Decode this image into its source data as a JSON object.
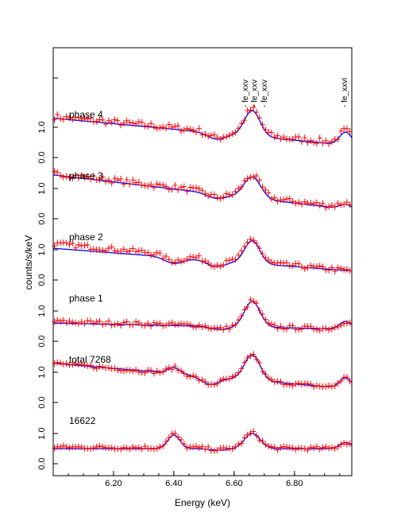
{
  "chart_data": {
    "type": "line",
    "xlabel": "Energy (keV)",
    "ylabel": "counts/s/keV",
    "xlim": [
      6.0,
      6.99
    ],
    "x_ticks": [
      "6.20",
      "6.40",
      "6.60",
      "6.80"
    ],
    "y_tick_labels": [
      "0.0",
      "1.0"
    ],
    "grid": false,
    "line_labels": [
      {
        "label": "fe_xxv",
        "energy": 6.637
      },
      {
        "label": "fe_xxv",
        "energy": 6.668
      },
      {
        "label": "fe_xxv",
        "energy": 6.7
      },
      {
        "label": "fe_xxvi",
        "energy": 6.966
      }
    ],
    "colors": {
      "data": "#ff0000",
      "model": "#0000ff",
      "axis": "#000000"
    },
    "panels": [
      {
        "name": "phase 4",
        "data_start": 1.35,
        "data_end": 0.45,
        "model_start": 1.3,
        "model_end": 0.4,
        "features": [
          [
            6.66,
            0.85,
            0.026
          ],
          [
            6.97,
            0.42,
            0.02
          ],
          [
            6.54,
            -0.2,
            0.03
          ]
        ],
        "noise": 0.1
      },
      {
        "name": "phase 3",
        "data_start": 1.5,
        "data_end": 0.35,
        "model_start": 1.45,
        "model_end": 0.3,
        "features": [
          [
            6.66,
            0.7,
            0.028
          ],
          [
            6.97,
            0.15,
            0.02
          ],
          [
            6.54,
            -0.15,
            0.03
          ]
        ],
        "noise": 0.09
      },
      {
        "name": "phase 2",
        "data_start": 1.2,
        "data_end": 0.3,
        "model_start": 1.05,
        "model_end": 0.3,
        "features": [
          [
            6.66,
            0.75,
            0.025
          ],
          [
            6.4,
            -0.2,
            0.03
          ],
          [
            6.54,
            -0.2,
            0.03
          ]
        ],
        "noise": 0.08
      },
      {
        "name": "phase 1",
        "data_start": 0.65,
        "data_end": 0.4,
        "model_start": 0.6,
        "model_end": 0.4,
        "features": [
          [
            6.66,
            0.85,
            0.026
          ],
          [
            6.97,
            0.25,
            0.02
          ],
          [
            6.55,
            -0.1,
            0.03
          ]
        ],
        "noise": 0.07
      },
      {
        "name": "total 7268",
        "data_start": 1.3,
        "data_end": 0.45,
        "model_start": 1.3,
        "model_end": 0.45,
        "features": [
          [
            6.66,
            0.85,
            0.026
          ],
          [
            6.97,
            0.35,
            0.02
          ],
          [
            6.4,
            0.2,
            0.02
          ],
          [
            6.52,
            -0.25,
            0.03
          ]
        ],
        "noise": 0.06
      },
      {
        "name": "16622",
        "data_start": 0.55,
        "data_end": 0.5,
        "model_start": 0.5,
        "model_end": 0.5,
        "features": [
          [
            6.4,
            0.45,
            0.02
          ],
          [
            6.66,
            0.5,
            0.026
          ],
          [
            6.97,
            0.2,
            0.02
          ],
          [
            6.55,
            -0.05,
            0.03
          ]
        ],
        "noise": 0.06
      }
    ]
  }
}
